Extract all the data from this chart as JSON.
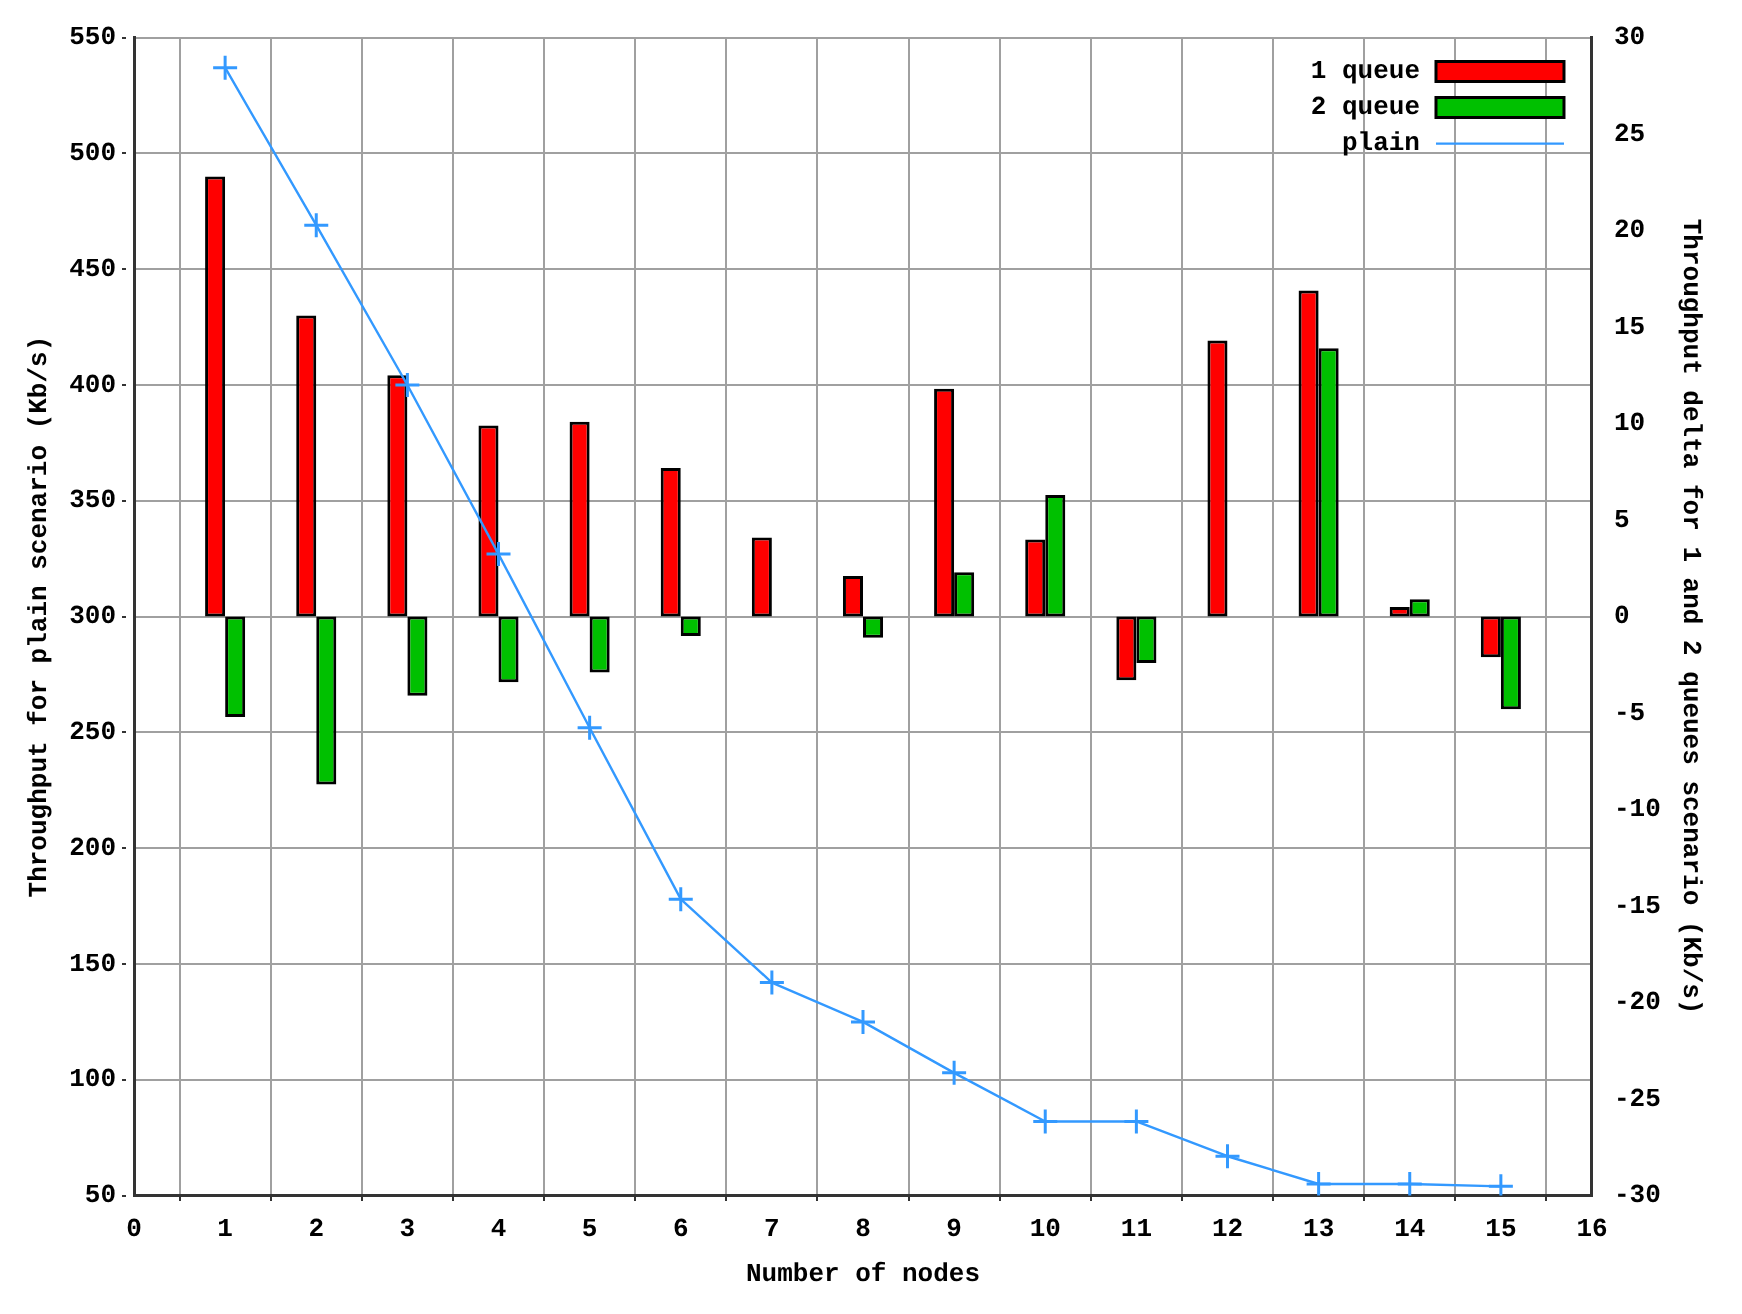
{
  "chart_data": {
    "type": "bar",
    "xlabel": "Number of nodes",
    "ylabel": "Throughput for plain scenario (Kb/s)",
    "y2label": "Throughput delta for 1 and 2 queues scenario (Kb/s)",
    "x": [
      1,
      2,
      3,
      4,
      5,
      6,
      7,
      8,
      9,
      10,
      11,
      12,
      13,
      14,
      15
    ],
    "series": [
      {
        "name": "1 queue",
        "axis": "y2",
        "color": "#ff0000",
        "values": [
          22.8,
          15.6,
          12.5,
          9.9,
          10.1,
          7.7,
          4.1,
          2.1,
          11.8,
          4.0,
          -3.3,
          14.3,
          16.9,
          0.5,
          -2.1
        ]
      },
      {
        "name": "2 queue",
        "axis": "y2",
        "color": "#00c000",
        "values": [
          -5.2,
          -8.7,
          -4.1,
          -3.4,
          -2.9,
          -1.0,
          0,
          -1.1,
          2.3,
          6.3,
          -2.4,
          0,
          13.9,
          0.9,
          -4.8
        ]
      },
      {
        "name": "plain",
        "type": "line",
        "color": "#3399ff",
        "marker": "cross",
        "values": [
          537,
          469,
          400,
          327,
          252,
          178,
          142,
          125,
          103,
          82,
          82,
          67,
          55,
          55,
          54
        ]
      }
    ],
    "xlim": [
      0,
      16
    ],
    "xticks": [
      0,
      1,
      2,
      3,
      4,
      5,
      6,
      7,
      8,
      9,
      10,
      11,
      12,
      13,
      14,
      15,
      16
    ],
    "ylim": [
      50,
      550
    ],
    "yticks": [
      50,
      100,
      150,
      200,
      250,
      300,
      350,
      400,
      450,
      500,
      550
    ],
    "y2lim": [
      -30,
      30
    ],
    "y2ticks": [
      -30,
      -25,
      -20,
      -15,
      -10,
      -5,
      0,
      5,
      10,
      15,
      20,
      25,
      30
    ],
    "grid": true,
    "legend": "top right"
  }
}
